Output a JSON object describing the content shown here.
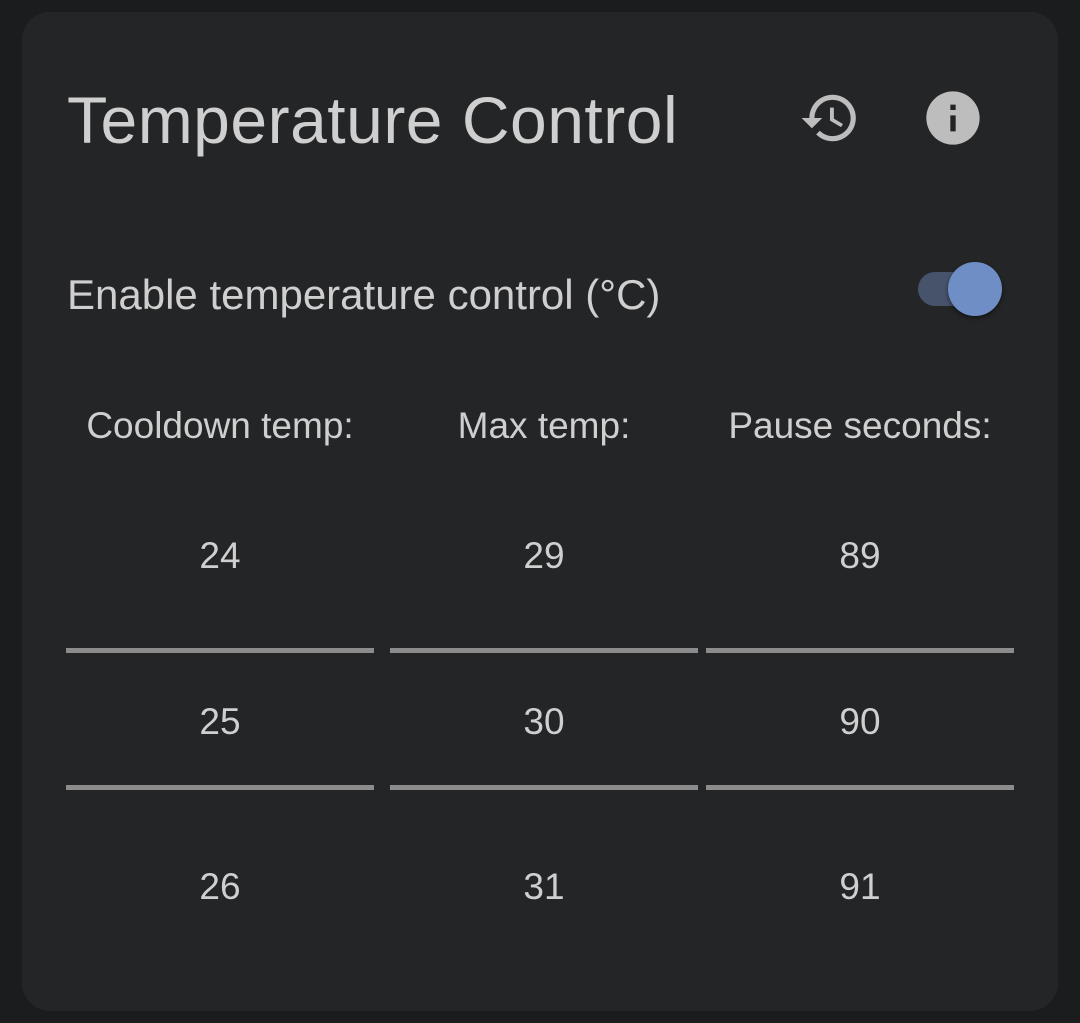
{
  "card": {
    "title": "Temperature Control"
  },
  "icons": {
    "history": "history-icon",
    "info": "info-icon"
  },
  "toggle": {
    "label": "Enable temperature control (°C)",
    "checked": true,
    "track_color": "#46536b",
    "thumb_color": "#6f8ec5"
  },
  "pickers": [
    {
      "header": "Cooldown temp:",
      "values": [
        "24",
        "25",
        "26"
      ],
      "selected": "25"
    },
    {
      "header": "Max temp:",
      "values": [
        "29",
        "30",
        "31"
      ],
      "selected": "30"
    },
    {
      "header": "Pause seconds:",
      "values": [
        "89",
        "90",
        "91"
      ],
      "selected": "90"
    }
  ]
}
